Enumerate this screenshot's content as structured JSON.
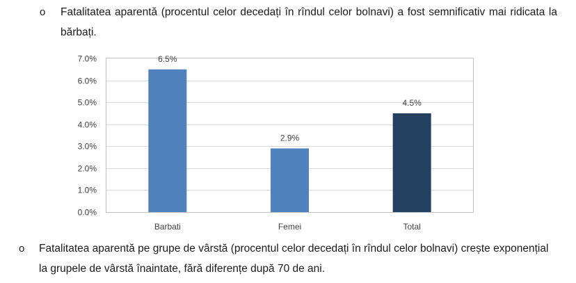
{
  "bullets": [
    {
      "marker": "o",
      "text": "Fatalitatea aparentă (procentul celor decedați în rîndul celor bolnavi) a fost semnificativ mai ridicata la bărbați."
    },
    {
      "marker": "o",
      "text": "Fatalitatea aparentă pe grupe de vârstă (procentul celor decedați în rîndul celor bolnavi) crește exponențial la grupele de vârstă înaintate, fără diferențe după 70 de ani."
    }
  ],
  "chart_data": {
    "type": "bar",
    "title": "",
    "xlabel": "",
    "ylabel": "",
    "categories": [
      "Barbati",
      "Femei",
      "Total"
    ],
    "values": [
      6.5,
      2.9,
      4.5
    ],
    "value_labels": [
      "6.5%",
      "2.9%",
      "4.5%"
    ],
    "ylim": [
      0,
      7
    ],
    "yticks": [
      0,
      1,
      2,
      3,
      4,
      5,
      6,
      7
    ],
    "ytick_labels": [
      "0.0%",
      "1.0%",
      "2.0%",
      "3.0%",
      "4.0%",
      "5.0%",
      "6.0%",
      "7.0%"
    ],
    "bar_colors": [
      "#4f81bd",
      "#4f81bd",
      "#243f60"
    ],
    "grid": true,
    "legend": "none",
    "gridline_color": "#d9d9d9",
    "border_color": "#bfbfbf"
  }
}
